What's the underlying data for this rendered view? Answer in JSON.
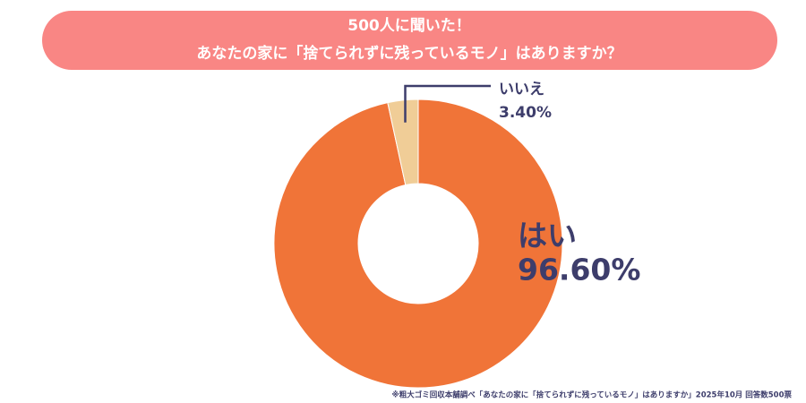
{
  "chart_data": {
    "type": "pie",
    "title": "500人に聞いた！",
    "subtitle": "あなたの家に「捨てられずに残っているモノ」はありますか？",
    "categories": [
      "はい",
      "いいえ"
    ],
    "values": [
      96.6,
      3.4
    ],
    "value_labels": [
      "96.60%",
      "3.40%"
    ],
    "colors": [
      "#f07438",
      "#f0cd97"
    ],
    "donut": true,
    "note": "※粗大ゴミ回収本舗調べ「あなたの家に「捨てられずに残っているモノ」はありますか」2025年10月 回答数500票"
  }
}
